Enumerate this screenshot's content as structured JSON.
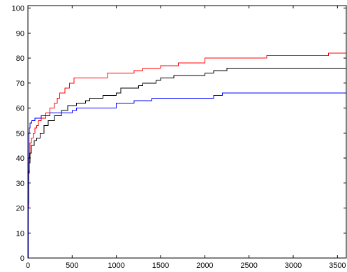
{
  "chart_data": {
    "type": "line",
    "step": true,
    "title": "",
    "xlabel": "",
    "ylabel": "",
    "xlim": [
      0,
      3600
    ],
    "ylim": [
      0,
      101
    ],
    "box": true,
    "grid": false,
    "xticks": [
      0,
      500,
      1000,
      1500,
      2000,
      2500,
      3000,
      3500
    ],
    "yticks": [
      0,
      10,
      20,
      30,
      40,
      50,
      60,
      70,
      80,
      90,
      100
    ],
    "xtick_labels": [
      "0",
      "500",
      "1000",
      "1500",
      "2000",
      "2500",
      "3000",
      "3500"
    ],
    "ytick_labels": [
      "0",
      "10",
      "20",
      "30",
      "40",
      "50",
      "60",
      "70",
      "80",
      "90",
      "100"
    ],
    "series": [
      {
        "color": "#ff0000",
        "points": [
          [
            0,
            0
          ],
          [
            3,
            20
          ],
          [
            8,
            35
          ],
          [
            15,
            42
          ],
          [
            25,
            46
          ],
          [
            40,
            48
          ],
          [
            60,
            50
          ],
          [
            80,
            52
          ],
          [
            100,
            53
          ],
          [
            120,
            55
          ],
          [
            150,
            56
          ],
          [
            200,
            58
          ],
          [
            250,
            60
          ],
          [
            300,
            62
          ],
          [
            330,
            64
          ],
          [
            360,
            66
          ],
          [
            420,
            68
          ],
          [
            470,
            70
          ],
          [
            520,
            72
          ],
          [
            700,
            72
          ],
          [
            900,
            74
          ],
          [
            1200,
            75
          ],
          [
            1300,
            76
          ],
          [
            1500,
            77
          ],
          [
            1700,
            78
          ],
          [
            2000,
            80
          ],
          [
            2700,
            81
          ],
          [
            3400,
            82
          ],
          [
            3600,
            82
          ]
        ]
      },
      {
        "color": "#000000",
        "points": [
          [
            0,
            0
          ],
          [
            3,
            22
          ],
          [
            8,
            34
          ],
          [
            15,
            38
          ],
          [
            25,
            42
          ],
          [
            40,
            45
          ],
          [
            70,
            47
          ],
          [
            100,
            48
          ],
          [
            140,
            50
          ],
          [
            180,
            53
          ],
          [
            230,
            55
          ],
          [
            300,
            57
          ],
          [
            380,
            59
          ],
          [
            450,
            61
          ],
          [
            550,
            62
          ],
          [
            650,
            63
          ],
          [
            700,
            64
          ],
          [
            850,
            65
          ],
          [
            1000,
            66
          ],
          [
            1050,
            68
          ],
          [
            1250,
            69
          ],
          [
            1300,
            70
          ],
          [
            1450,
            71
          ],
          [
            1500,
            72
          ],
          [
            1650,
            73
          ],
          [
            2000,
            74
          ],
          [
            2100,
            75
          ],
          [
            2250,
            76
          ],
          [
            3600,
            76
          ]
        ]
      },
      {
        "color": "#0000ff",
        "points": [
          [
            0,
            0
          ],
          [
            2,
            28
          ],
          [
            5,
            40
          ],
          [
            10,
            50
          ],
          [
            15,
            52
          ],
          [
            25,
            54
          ],
          [
            45,
            55
          ],
          [
            80,
            56
          ],
          [
            150,
            57
          ],
          [
            250,
            58
          ],
          [
            500,
            59
          ],
          [
            550,
            60
          ],
          [
            900,
            60
          ],
          [
            1000,
            62
          ],
          [
            1200,
            63
          ],
          [
            1400,
            64
          ],
          [
            2100,
            65
          ],
          [
            2200,
            66
          ],
          [
            3600,
            66
          ]
        ]
      }
    ]
  }
}
